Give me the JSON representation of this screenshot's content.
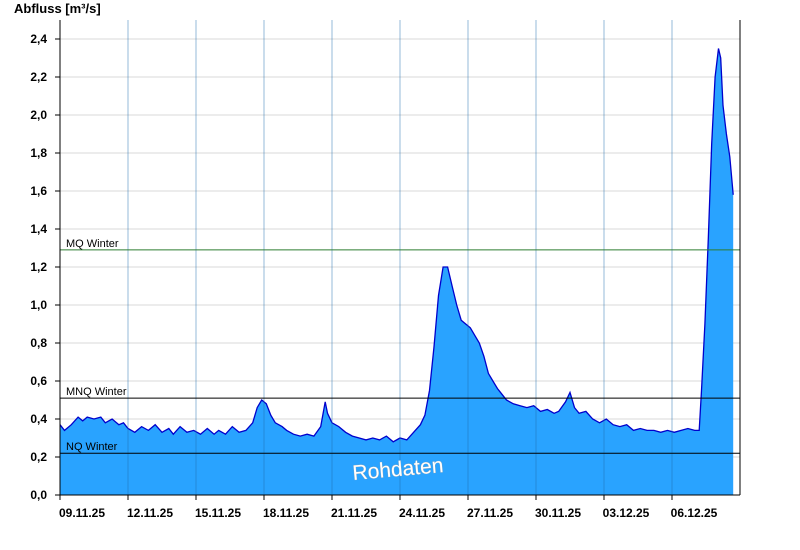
{
  "chart_data": {
    "type": "area",
    "title": "",
    "ylabel": "Abfluss [m³/s]",
    "xlabel": "",
    "ylim": [
      0,
      2.5
    ],
    "y_ticks": [
      "0,0",
      "0,2",
      "0,4",
      "0,6",
      "0,8",
      "1,0",
      "1,2",
      "1,4",
      "1,6",
      "1,8",
      "2,0",
      "2,2",
      "2,4"
    ],
    "x_range_days": [
      0,
      30
    ],
    "x_ticks": [
      {
        "day": 0,
        "label": "09.11.25"
      },
      {
        "day": 3,
        "label": "12.11.25"
      },
      {
        "day": 6,
        "label": "15.11.25"
      },
      {
        "day": 9,
        "label": "18.11.25"
      },
      {
        "day": 12,
        "label": "21.11.25"
      },
      {
        "day": 15,
        "label": "24.11.25"
      },
      {
        "day": 18,
        "label": "27.11.25"
      },
      {
        "day": 21,
        "label": "30.11.25"
      },
      {
        "day": 24,
        "label": "03.12.25"
      },
      {
        "day": 27,
        "label": "06.12.25"
      }
    ],
    "series": [
      {
        "values": [
          [
            0.0,
            0.37
          ],
          [
            0.2,
            0.34
          ],
          [
            0.5,
            0.37
          ],
          [
            0.8,
            0.41
          ],
          [
            1.0,
            0.39
          ],
          [
            1.2,
            0.41
          ],
          [
            1.5,
            0.4
          ],
          [
            1.8,
            0.41
          ],
          [
            2.0,
            0.38
          ],
          [
            2.3,
            0.4
          ],
          [
            2.6,
            0.37
          ],
          [
            2.8,
            0.38
          ],
          [
            3.0,
            0.35
          ],
          [
            3.3,
            0.33
          ],
          [
            3.6,
            0.36
          ],
          [
            3.9,
            0.34
          ],
          [
            4.2,
            0.37
          ],
          [
            4.5,
            0.33
          ],
          [
            4.8,
            0.35
          ],
          [
            5.0,
            0.32
          ],
          [
            5.3,
            0.36
          ],
          [
            5.6,
            0.33
          ],
          [
            5.9,
            0.34
          ],
          [
            6.2,
            0.32
          ],
          [
            6.5,
            0.35
          ],
          [
            6.8,
            0.32
          ],
          [
            7.0,
            0.34
          ],
          [
            7.3,
            0.32
          ],
          [
            7.6,
            0.36
          ],
          [
            7.9,
            0.33
          ],
          [
            8.2,
            0.34
          ],
          [
            8.5,
            0.38
          ],
          [
            8.7,
            0.46
          ],
          [
            8.9,
            0.5
          ],
          [
            9.1,
            0.48
          ],
          [
            9.3,
            0.42
          ],
          [
            9.5,
            0.38
          ],
          [
            9.8,
            0.36
          ],
          [
            10.0,
            0.34
          ],
          [
            10.3,
            0.32
          ],
          [
            10.6,
            0.31
          ],
          [
            10.9,
            0.32
          ],
          [
            11.2,
            0.31
          ],
          [
            11.5,
            0.36
          ],
          [
            11.7,
            0.49
          ],
          [
            11.8,
            0.43
          ],
          [
            12.0,
            0.38
          ],
          [
            12.3,
            0.36
          ],
          [
            12.6,
            0.33
          ],
          [
            12.9,
            0.31
          ],
          [
            13.2,
            0.3
          ],
          [
            13.5,
            0.29
          ],
          [
            13.8,
            0.3
          ],
          [
            14.1,
            0.29
          ],
          [
            14.4,
            0.31
          ],
          [
            14.7,
            0.28
          ],
          [
            15.0,
            0.3
          ],
          [
            15.3,
            0.29
          ],
          [
            15.6,
            0.33
          ],
          [
            15.9,
            0.37
          ],
          [
            16.1,
            0.42
          ],
          [
            16.3,
            0.55
          ],
          [
            16.5,
            0.78
          ],
          [
            16.7,
            1.05
          ],
          [
            16.9,
            1.2
          ],
          [
            17.1,
            1.2
          ],
          [
            17.3,
            1.1
          ],
          [
            17.5,
            1.0
          ],
          [
            17.7,
            0.92
          ],
          [
            17.9,
            0.9
          ],
          [
            18.1,
            0.88
          ],
          [
            18.3,
            0.84
          ],
          [
            18.5,
            0.8
          ],
          [
            18.7,
            0.73
          ],
          [
            18.9,
            0.64
          ],
          [
            19.1,
            0.6
          ],
          [
            19.3,
            0.56
          ],
          [
            19.5,
            0.53
          ],
          [
            19.7,
            0.5
          ],
          [
            20.0,
            0.48
          ],
          [
            20.3,
            0.47
          ],
          [
            20.6,
            0.46
          ],
          [
            20.9,
            0.47
          ],
          [
            21.2,
            0.44
          ],
          [
            21.5,
            0.45
          ],
          [
            21.8,
            0.43
          ],
          [
            22.0,
            0.44
          ],
          [
            22.3,
            0.49
          ],
          [
            22.5,
            0.54
          ],
          [
            22.7,
            0.46
          ],
          [
            22.9,
            0.43
          ],
          [
            23.2,
            0.44
          ],
          [
            23.5,
            0.4
          ],
          [
            23.8,
            0.38
          ],
          [
            24.1,
            0.4
          ],
          [
            24.4,
            0.37
          ],
          [
            24.7,
            0.36
          ],
          [
            25.0,
            0.37
          ],
          [
            25.3,
            0.34
          ],
          [
            25.6,
            0.35
          ],
          [
            25.9,
            0.34
          ],
          [
            26.2,
            0.34
          ],
          [
            26.5,
            0.33
          ],
          [
            26.8,
            0.34
          ],
          [
            27.1,
            0.33
          ],
          [
            27.4,
            0.34
          ],
          [
            27.7,
            0.35
          ],
          [
            28.0,
            0.34
          ],
          [
            28.2,
            0.34
          ],
          [
            28.3,
            0.55
          ],
          [
            28.45,
            0.9
          ],
          [
            28.6,
            1.35
          ],
          [
            28.75,
            1.85
          ],
          [
            28.9,
            2.2
          ],
          [
            29.05,
            2.35
          ],
          [
            29.15,
            2.3
          ],
          [
            29.25,
            2.05
          ],
          [
            29.4,
            1.9
          ],
          [
            29.55,
            1.78
          ],
          [
            29.7,
            1.58
          ]
        ]
      }
    ],
    "reference_lines": [
      {
        "label": "MQ Winter",
        "value": 1.29,
        "color": "#2e7d32"
      },
      {
        "label": "MNQ Winter",
        "value": 0.51,
        "color": "#000000"
      },
      {
        "label": "NQ Winter",
        "value": 0.22,
        "color": "#000000"
      }
    ],
    "annotation": "Rohdaten",
    "colors": {
      "fill": "#29a3ff",
      "line": "#0000cc",
      "grid": "#d8d8d8",
      "vgrid": "#1f6fb0"
    }
  }
}
